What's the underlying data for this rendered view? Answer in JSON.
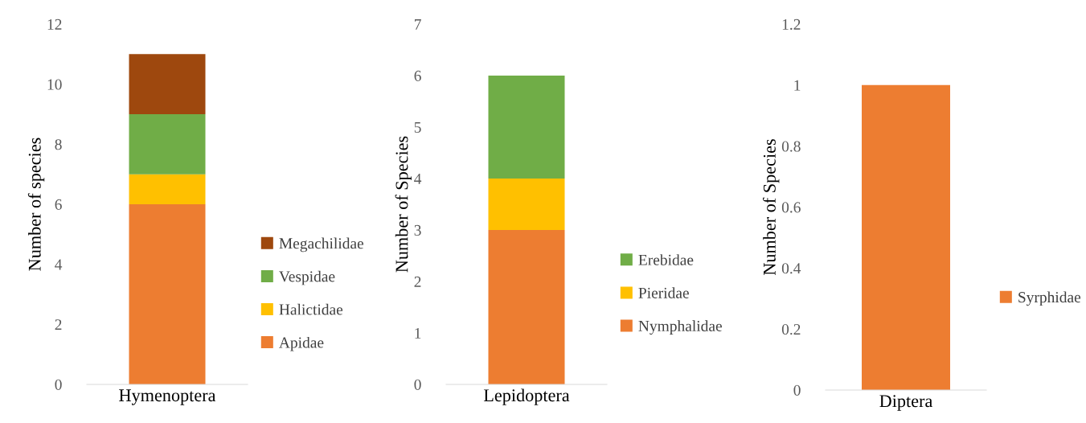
{
  "chart_data": [
    {
      "type": "bar",
      "stacked": true,
      "categories": [
        "Hymenoptera"
      ],
      "ylabel": "Number of species",
      "ylim": [
        0,
        12
      ],
      "yticks": [
        0,
        2,
        4,
        6,
        8,
        10,
        12
      ],
      "legend": "right",
      "grid": false,
      "series": [
        {
          "name": "Apidae",
          "color": "#ed7d31",
          "values": [
            6
          ]
        },
        {
          "name": "Halictidae",
          "color": "#ffc000",
          "values": [
            1
          ]
        },
        {
          "name": "Vespidae",
          "color": "#70ad47",
          "values": [
            2
          ]
        },
        {
          "name": "Megachilidae",
          "color": "#9e480e",
          "values": [
            2
          ]
        }
      ]
    },
    {
      "type": "bar",
      "stacked": true,
      "categories": [
        "Lepidoptera"
      ],
      "ylabel": "Number of Species",
      "ylim": [
        0,
        7
      ],
      "yticks": [
        0,
        1,
        2,
        3,
        4,
        5,
        6,
        7
      ],
      "legend": "right",
      "grid": false,
      "series": [
        {
          "name": "Nymphalidae",
          "color": "#ed7d31",
          "values": [
            3
          ]
        },
        {
          "name": "Pieridae",
          "color": "#ffc000",
          "values": [
            1
          ]
        },
        {
          "name": "Erebidae",
          "color": "#70ad47",
          "values": [
            2
          ]
        }
      ]
    },
    {
      "type": "bar",
      "stacked": true,
      "categories": [
        "Diptera"
      ],
      "ylabel": "Number of Species",
      "ylim": [
        0,
        1.2
      ],
      "yticks": [
        0,
        0.2,
        0.4,
        0.6,
        0.8,
        1,
        1.2
      ],
      "legend": "right",
      "grid": false,
      "series": [
        {
          "name": "Syrphidae",
          "color": "#ed7d31",
          "values": [
            1
          ]
        }
      ]
    }
  ]
}
